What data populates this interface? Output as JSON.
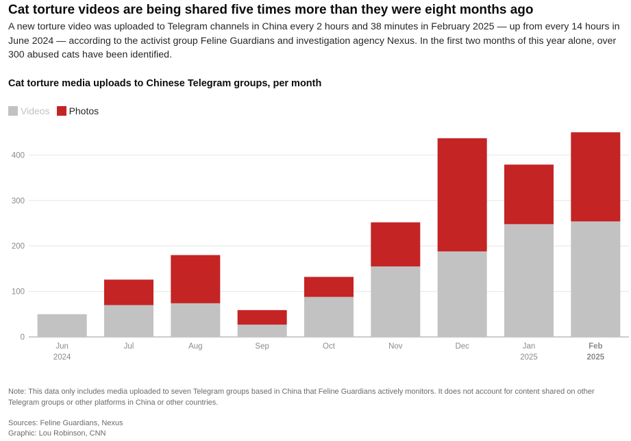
{
  "header": {
    "headline": "Cat torture videos are being shared five times more than they were eight months ago",
    "dek": "A new torture video was uploaded to Telegram channels in China every 2 hours and 38 minutes in February 2025 — up from every 14 hours in June 2024 — according to the activist group Feline Guardians and investigation agency Nexus. In the first two months of this year alone, over 300 abused cats have been identified."
  },
  "legend": {
    "videos_label": "Videos",
    "photos_label": "Photos"
  },
  "colors": {
    "videos": "#c2c2c2",
    "photos": "#c42424",
    "grid": "#e6e6e6",
    "axis": "#9a9a9a"
  },
  "chart_data": {
    "type": "bar",
    "stacked": true,
    "title": "Cat torture media uploads to Chinese Telegram groups, per month",
    "categories": [
      "Jun",
      "Jul",
      "Aug",
      "Sep",
      "Oct",
      "Nov",
      "Dec",
      "Jan",
      "Feb"
    ],
    "category_sublabels": [
      "2024",
      "",
      "",
      "",
      "",
      "",
      "",
      "2025",
      "2025"
    ],
    "highlight_category": "Feb",
    "series": [
      {
        "name": "Videos",
        "values": [
          50,
          70,
          74,
          27,
          88,
          155,
          188,
          248,
          254
        ]
      },
      {
        "name": "Photos",
        "values": [
          0,
          56,
          106,
          32,
          44,
          97,
          249,
          131,
          196
        ]
      }
    ],
    "yticks": [
      0,
      100,
      200,
      300,
      400
    ],
    "ylim": [
      0,
      470
    ],
    "grid": true,
    "xlabel": "",
    "ylabel": ""
  },
  "footer": {
    "note": "Note: This data only includes media uploaded to seven Telegram groups based in China that Feline Guardians actively monitors. It does not account for content shared on other Telegram groups or other platforms in China or other countries.",
    "sources": "Sources: Feline Guardians, Nexus",
    "graphic": "Graphic: Lou Robinson, CNN"
  }
}
